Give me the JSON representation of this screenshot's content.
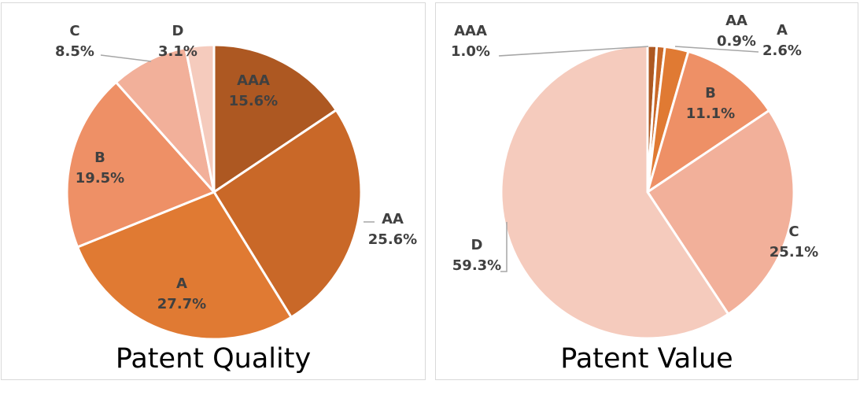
{
  "chart_data": [
    {
      "type": "pie",
      "title": "Patent Quality",
      "categories": [
        "AAA",
        "AA",
        "A",
        "B",
        "C",
        "D"
      ],
      "values": [
        15.6,
        25.6,
        27.7,
        19.5,
        8.5,
        3.1
      ],
      "labels": [
        "15.6%",
        "25.6%",
        "27.7%",
        "19.5%",
        "8.5%",
        "3.1%"
      ],
      "colors": [
        "#ad5822",
        "#c96828",
        "#e07a33",
        "#ee9066",
        "#f2b09a",
        "#f5cbbd"
      ],
      "legend": "none"
    },
    {
      "type": "pie",
      "title": "Patent Value",
      "categories": [
        "AAA",
        "AA",
        "A",
        "B",
        "C",
        "D"
      ],
      "values": [
        1.0,
        0.9,
        2.6,
        11.1,
        25.1,
        59.3
      ],
      "labels": [
        "1.0%",
        "0.9%",
        "2.6%",
        "11.1%",
        "25.1%",
        "59.3%"
      ],
      "colors": [
        "#ad5822",
        "#c96828",
        "#e07a33",
        "#ee9066",
        "#f2b09a",
        "#f5cbbd"
      ],
      "legend": "none"
    }
  ]
}
